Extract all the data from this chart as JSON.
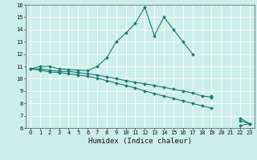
{
  "xlabel": "Humidex (Indice chaleur)",
  "x": [
    0,
    1,
    2,
    3,
    4,
    5,
    6,
    7,
    8,
    9,
    10,
    11,
    12,
    13,
    14,
    15,
    16,
    17,
    18,
    19,
    20,
    21,
    22,
    23
  ],
  "line1": [
    10.8,
    11.0,
    11.0,
    10.8,
    10.75,
    10.7,
    10.65,
    11.0,
    11.7,
    13.0,
    13.7,
    14.5,
    15.8,
    13.5,
    15.0,
    14.0,
    13.0,
    12.0,
    null,
    8.6,
    null,
    null,
    6.2,
    6.35
  ],
  "line2": [
    10.8,
    10.8,
    10.7,
    10.6,
    10.6,
    10.5,
    10.4,
    10.3,
    10.15,
    10.0,
    9.85,
    9.7,
    9.6,
    9.45,
    9.3,
    9.15,
    9.0,
    8.85,
    8.6,
    8.5,
    null,
    null,
    6.6,
    6.35
  ],
  "line3": [
    10.8,
    10.7,
    10.55,
    10.5,
    10.4,
    10.3,
    10.2,
    10.05,
    9.85,
    9.65,
    9.45,
    9.25,
    9.0,
    8.8,
    8.6,
    8.4,
    8.2,
    8.0,
    7.8,
    7.6,
    null,
    null,
    6.8,
    6.35
  ],
  "xlim": [
    -0.5,
    23.5
  ],
  "ylim": [
    6,
    16
  ],
  "yticks": [
    6,
    7,
    8,
    9,
    10,
    11,
    12,
    13,
    14,
    15,
    16
  ],
  "xticks": [
    0,
    1,
    2,
    3,
    4,
    5,
    6,
    7,
    8,
    9,
    10,
    11,
    12,
    13,
    14,
    15,
    16,
    17,
    18,
    19,
    20,
    21,
    22,
    23
  ],
  "line_color": "#1a7a6e",
  "bg_color": "#cceee8",
  "grid_color": "#ffffff",
  "marker": "D",
  "marker_size": 2.0,
  "lw": 0.8,
  "tick_fontsize": 5.0,
  "xlabel_fontsize": 6.5
}
